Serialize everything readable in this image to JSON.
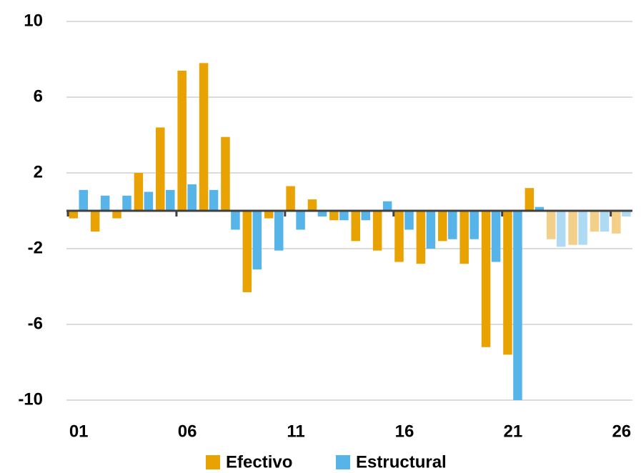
{
  "chart_data": {
    "type": "bar",
    "categories": [
      "01",
      null,
      null,
      null,
      null,
      "06",
      null,
      null,
      null,
      null,
      "11",
      null,
      null,
      null,
      null,
      "16",
      null,
      null,
      null,
      null,
      "21",
      null,
      null,
      null,
      null,
      "26"
    ],
    "series": [
      {
        "name": "Efectivo",
        "colors": [
          "#e8a202",
          "#e8a202",
          "#e8a202",
          "#e8a202",
          "#e8a202",
          "#e8a202",
          "#e8a202",
          "#e8a202",
          "#e8a202",
          "#e8a202",
          "#e8a202",
          "#e8a202",
          "#e8a202",
          "#e8a202",
          "#e8a202",
          "#e8a202",
          "#e8a202",
          "#e8a202",
          "#e8a202",
          "#e8a202",
          "#e8a202",
          "#e8a202",
          "#f3d08a",
          "#f3d08a",
          "#f3d08a",
          "#f3d08a"
        ],
        "values": [
          -0.4,
          -1.1,
          -0.4,
          2.0,
          4.4,
          7.4,
          7.8,
          3.9,
          -4.3,
          -0.4,
          1.3,
          0.6,
          -0.5,
          -1.6,
          -2.1,
          -2.7,
          -2.8,
          -1.6,
          -2.8,
          -7.2,
          -7.6,
          1.2,
          -1.5,
          -1.8,
          -1.1,
          -1.2
        ]
      },
      {
        "name": "Estructural",
        "colors": [
          "#56b4e9",
          "#56b4e9",
          "#56b4e9",
          "#56b4e9",
          "#56b4e9",
          "#56b4e9",
          "#56b4e9",
          "#56b4e9",
          "#56b4e9",
          "#56b4e9",
          "#56b4e9",
          "#56b4e9",
          "#56b4e9",
          "#56b4e9",
          "#56b4e9",
          "#56b4e9",
          "#56b4e9",
          "#56b4e9",
          "#56b4e9",
          "#56b4e9",
          "#56b4e9",
          "#56b4e9",
          "#aedaf4",
          "#aedaf4",
          "#aedaf4",
          "#aedaf4"
        ],
        "values": [
          1.1,
          0.8,
          0.8,
          1.0,
          1.1,
          1.4,
          1.1,
          -1.0,
          -3.1,
          -2.1,
          -1.0,
          -0.3,
          -0.5,
          -0.5,
          0.5,
          -1.0,
          -2.0,
          -1.5,
          -1.5,
          -2.7,
          -10.0,
          0.2,
          -1.9,
          -1.8,
          -1.1,
          -0.3
        ]
      }
    ],
    "ylim": [
      -10,
      10
    ],
    "yticks": [
      10,
      6,
      2,
      -2,
      -6,
      -10
    ],
    "grid": true
  }
}
